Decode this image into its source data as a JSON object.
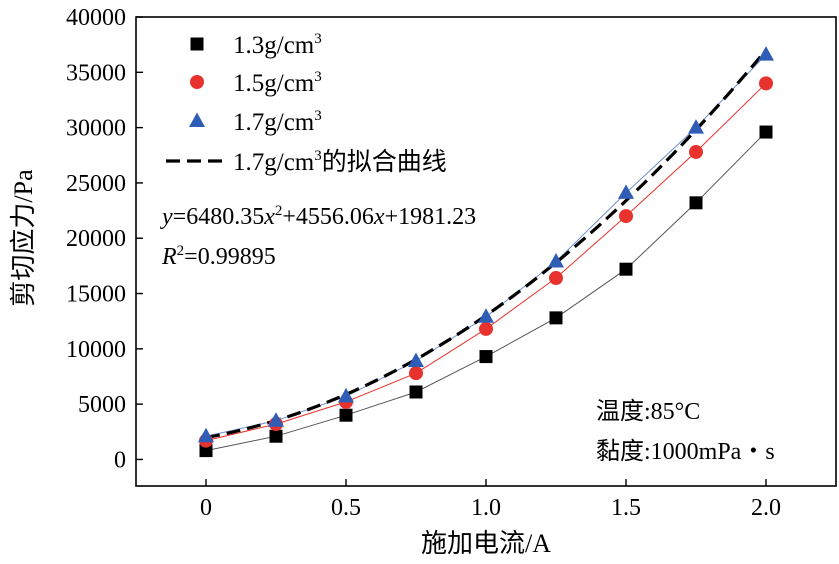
{
  "chart_data": {
    "type": "line",
    "title": "",
    "xlabel": "施加电流/A",
    "ylabel": "剪切应力/Pa",
    "xlim": [
      -0.25,
      2.25
    ],
    "ylim": [
      -2400,
      40000
    ],
    "xticks": [
      0,
      0.5,
      1.0,
      1.5,
      2.0
    ],
    "xtick_labels": [
      "0",
      "0.5",
      "1.0",
      "1.5",
      "2.0"
    ],
    "yticks": [
      0,
      5000,
      10000,
      15000,
      20000,
      25000,
      30000,
      35000,
      40000
    ],
    "ytick_labels": [
      "0",
      "5000",
      "10000",
      "15000",
      "20000",
      "25000",
      "30000",
      "35000",
      "40000"
    ],
    "x": [
      0,
      0.25,
      0.5,
      0.75,
      1.0,
      1.25,
      1.5,
      1.75,
      2.0
    ],
    "series": [
      {
        "name": "1.3g/cm³",
        "marker": "square",
        "color": "#000000",
        "line_color": "#555555",
        "values": [
          800,
          2100,
          4000,
          6100,
          9300,
          12800,
          17200,
          23200,
          29600
        ]
      },
      {
        "name": "1.5g/cm³",
        "marker": "circle",
        "color": "#e8322d",
        "line_color": "#e8322d",
        "values": [
          1700,
          3200,
          5200,
          7800,
          11800,
          16400,
          22000,
          27800,
          34000
        ]
      },
      {
        "name": "1.7g/cm³",
        "marker": "triangle",
        "color": "#2f5cb5",
        "line_color": "#6f8fcf",
        "values": [
          2100,
          3500,
          5700,
          8900,
          12900,
          17900,
          24100,
          30000,
          36600
        ]
      }
    ],
    "fit": {
      "name": "1.7g/cm³的拟合曲线",
      "a": 6480.35,
      "b": 4556.06,
      "c": 1981.23,
      "x_range": [
        0,
        2.0
      ],
      "style": "dashed",
      "color": "#000000"
    },
    "legend": {
      "placement": "top-left",
      "items": [
        {
          "marker": "square",
          "base": "1.3g/cm",
          "sup": "3",
          "suffix": ""
        },
        {
          "marker": "circle",
          "base": "1.5g/cm",
          "sup": "3",
          "suffix": ""
        },
        {
          "marker": "triangle",
          "base": "1.7g/cm",
          "sup": "3",
          "suffix": ""
        },
        {
          "marker": "dashed-line",
          "base": "1.7g/cm",
          "sup": "3",
          "suffix": "的拟合曲线"
        }
      ]
    },
    "equation": {
      "y": "y",
      "eq1": "=6480.35",
      "x1": "x",
      "sup2": "2",
      "eq2": "+4556.06",
      "x2": "x",
      "eq3": "+1981.23"
    },
    "r2": {
      "r": "R",
      "sup": "2",
      "value": "=0.99895"
    },
    "conditions": {
      "temperature": "温度:85°C",
      "viscosity": "黏度:1000mPa・s"
    }
  }
}
